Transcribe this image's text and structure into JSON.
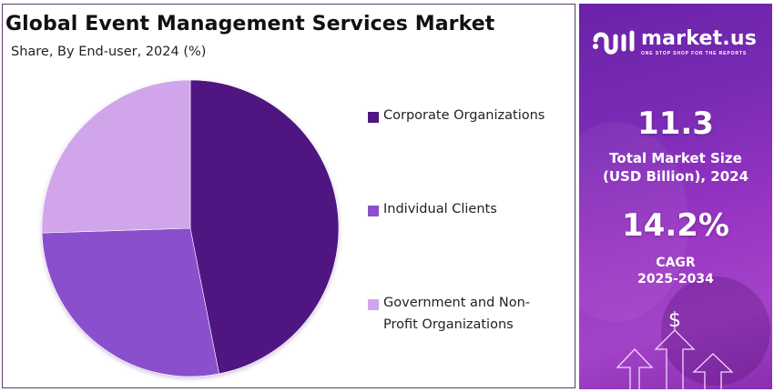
{
  "header": {
    "title": "Global Event Management Services Market",
    "subtitle": "Share, By End-user, 2024 (%)"
  },
  "legend": [
    {
      "label": "Corporate Organizations",
      "color": "#4f1782"
    },
    {
      "label": "Individual Clients",
      "color": "#8a4fcc"
    },
    {
      "label": "Government and Non-Profit Organizations",
      "color": "#d0a5ea"
    }
  ],
  "side_panel": {
    "brand": {
      "name": "market.us",
      "tagline": "ONE STOP SHOP FOR THE REPORTS"
    },
    "market_size": {
      "value": "11.3",
      "label_line1": "Total Market Size",
      "label_line2": "(USD Billion), 2024"
    },
    "cagr": {
      "value": "14.2%",
      "label_line1": "CAGR",
      "label_line2": "2025-2034"
    },
    "icon": "dollar-growth-arrows-icon",
    "dollar_symbol": "$"
  },
  "chart_data": {
    "type": "pie",
    "title": "Global Event Management Services Market",
    "subtitle": "Share, By End-user, 2024 (%)",
    "categories": [
      "Corporate Organizations",
      "Individual Clients",
      "Government and Non-Profit Organizations"
    ],
    "values": [
      46.9,
      27.6,
      25.5
    ],
    "colors": [
      "#4f1782",
      "#8a4fcc",
      "#d0a5ea"
    ],
    "start_angle": "12 o'clock, clockwise",
    "legend_position": "right",
    "data_labels": false,
    "units": "%"
  }
}
